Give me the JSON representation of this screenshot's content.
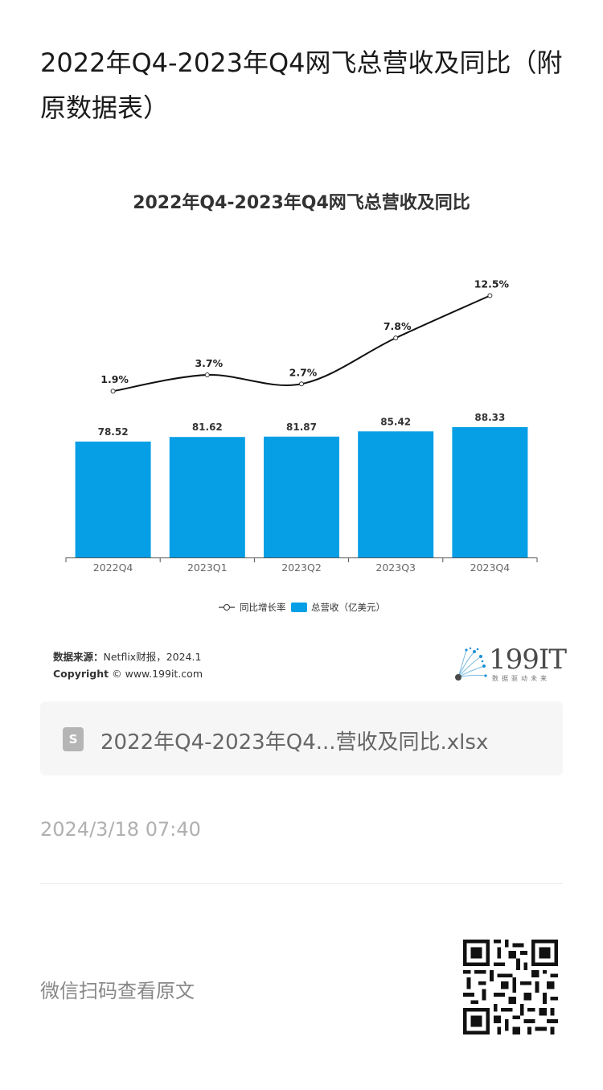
{
  "article": {
    "title": "2022年Q4-2023年Q4网飞总营收及同比（附原数据表）"
  },
  "chart_data": {
    "type": "bar",
    "title": "2022年Q4-2023年Q4网飞总营收及同比",
    "categories": [
      "2022Q4",
      "2023Q1",
      "2023Q2",
      "2023Q3",
      "2023Q4"
    ],
    "series": [
      {
        "name": "总营收（亿美元）",
        "type": "bar",
        "values": [
          78.52,
          81.62,
          81.87,
          85.42,
          88.33
        ],
        "labels": [
          "78.52",
          "81.62",
          "81.87",
          "85.42",
          "88.33"
        ],
        "color": "#069fe6"
      },
      {
        "name": "同比增长率",
        "type": "line",
        "values": [
          1.9,
          3.7,
          2.7,
          7.8,
          12.5
        ],
        "labels": [
          "1.9%",
          "3.7%",
          "2.7%",
          "7.8%",
          "12.5%"
        ],
        "color": "#111111"
      }
    ],
    "legend_position": "bottom",
    "grid": false
  },
  "source": {
    "label": "数据来源：",
    "text": "Netflix财报，2024.1",
    "copyright_label": "Copyright",
    "copyright_text": "© www.199it.com"
  },
  "logo": {
    "text": "199IT",
    "sub": "数据驱动未来"
  },
  "file": {
    "icon_letter": "S",
    "name": "2022年Q4-2023年Q4...营收及同比.xlsx"
  },
  "meta": {
    "timestamp": "2024/3/18 07:40",
    "qr_hint": "微信扫码查看原文"
  }
}
